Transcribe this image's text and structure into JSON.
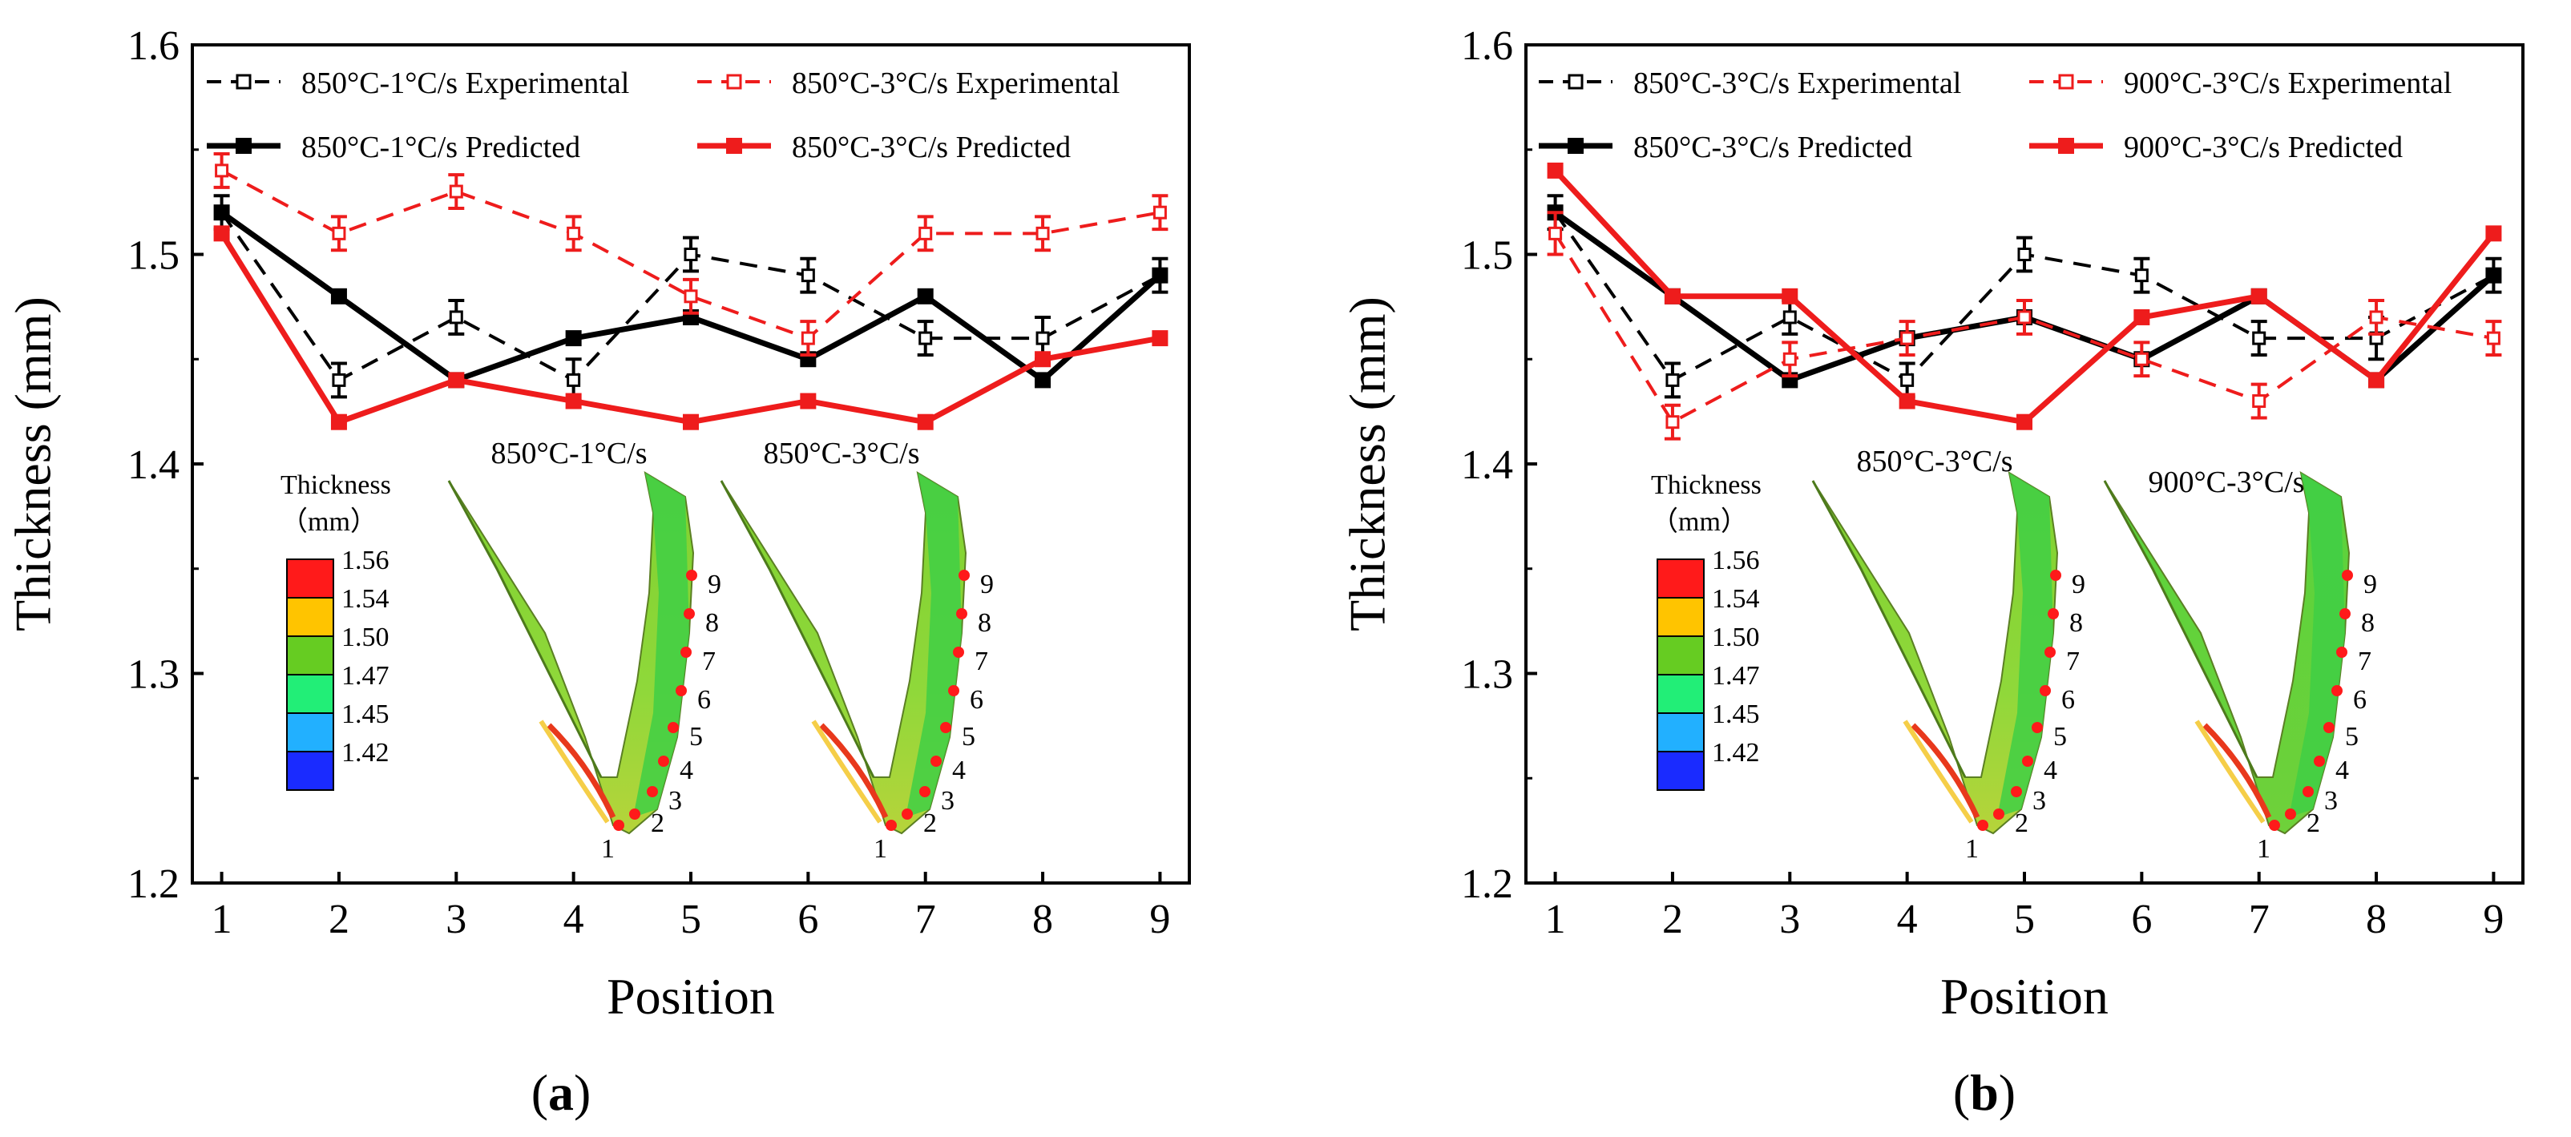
{
  "chart_data": [
    {
      "panel_label": "(a)",
      "panel_letter": "a",
      "type": "line",
      "xlabel": "Position",
      "ylabel": "Thickness (mm)",
      "ylim": [
        1.2,
        1.6
      ],
      "xlim": [
        0.75,
        9.25
      ],
      "x_ticks": [
        "1",
        "2",
        "3",
        "4",
        "5",
        "6",
        "7",
        "8",
        "9"
      ],
      "y_ticks": [
        "1.2",
        "1.3",
        "1.4",
        "1.5",
        "1.6"
      ],
      "x": [
        1,
        2,
        3,
        4,
        5,
        6,
        7,
        8,
        9
      ],
      "series": [
        {
          "name": "850°C-1°C/s Experimental",
          "color": "#000000",
          "style": "dashed",
          "marker": "open-square",
          "values": [
            1.52,
            1.44,
            1.47,
            1.44,
            1.5,
            1.49,
            1.46,
            1.46,
            1.49
          ],
          "errors": [
            0.008,
            0.008,
            0.008,
            0.01,
            0.008,
            0.008,
            0.008,
            0.01,
            0.008
          ]
        },
        {
          "name": "850°C-1°C/s Predicted",
          "color": "#000000",
          "style": "solid",
          "marker": "filled-square",
          "values": [
            1.52,
            1.48,
            1.44,
            1.46,
            1.47,
            1.45,
            1.48,
            1.44,
            1.49
          ]
        },
        {
          "name": "850°C-3°C/s Experimental",
          "color": "#ee1c1c",
          "style": "dashed",
          "marker": "open-square",
          "values": [
            1.54,
            1.51,
            1.53,
            1.51,
            1.48,
            1.46,
            1.51,
            1.51,
            1.52
          ],
          "errors": [
            0.008,
            0.008,
            0.008,
            0.008,
            0.008,
            0.008,
            0.008,
            0.008,
            0.008
          ]
        },
        {
          "name": "850°C-3°C/s Predicted",
          "color": "#ee1c1c",
          "style": "solid",
          "marker": "filled-square",
          "values": [
            1.51,
            1.42,
            1.44,
            1.43,
            1.42,
            1.43,
            1.42,
            1.45,
            1.46
          ]
        }
      ],
      "insets": [
        {
          "title": "850°C-1°C/s",
          "points": [
            "1",
            "2",
            "3",
            "4",
            "5",
            "6",
            "7",
            "8",
            "9"
          ]
        },
        {
          "title": "850°C-3°C/s",
          "points": [
            "1",
            "2",
            "3",
            "4",
            "5",
            "6",
            "7",
            "8",
            "9"
          ]
        }
      ],
      "colorbar": {
        "title_line1": "Thickness",
        "title_line2": "（mm）",
        "labels": [
          "1.56",
          "1.54",
          "1.50",
          "1.47",
          "1.45",
          "1.42"
        ],
        "colors": [
          "#ff1a1a",
          "#ffc400",
          "#66cc22",
          "#22ee77",
          "#22b0ff",
          "#1a2bff"
        ]
      }
    },
    {
      "panel_label": "(b)",
      "panel_letter": "b",
      "type": "line",
      "xlabel": "Position",
      "ylabel": "Thickness (mm)",
      "ylim": [
        1.2,
        1.6
      ],
      "xlim": [
        0.75,
        9.25
      ],
      "x_ticks": [
        "1",
        "2",
        "3",
        "4",
        "5",
        "6",
        "7",
        "8",
        "9"
      ],
      "y_ticks": [
        "1.2",
        "1.3",
        "1.4",
        "1.5",
        "1.6"
      ],
      "x": [
        1,
        2,
        3,
        4,
        5,
        6,
        7,
        8,
        9
      ],
      "series": [
        {
          "name": "850°C-3°C/s Experimental",
          "color": "#000000",
          "style": "dashed",
          "marker": "open-square",
          "values": [
            1.52,
            1.44,
            1.47,
            1.44,
            1.5,
            1.49,
            1.46,
            1.46,
            1.49
          ],
          "errors": [
            0.008,
            0.008,
            0.008,
            0.008,
            0.008,
            0.008,
            0.008,
            0.01,
            0.008
          ]
        },
        {
          "name": "850°C-3°C/s Predicted",
          "color": "#000000",
          "style": "solid",
          "marker": "filled-square",
          "values": [
            1.52,
            1.48,
            1.44,
            1.46,
            1.47,
            1.45,
            1.48,
            1.44,
            1.49
          ]
        },
        {
          "name": "900°C-3°C/s Experimental",
          "color": "#ee1c1c",
          "style": "dashed",
          "marker": "open-square",
          "values": [
            1.51,
            1.42,
            1.45,
            1.46,
            1.47,
            1.45,
            1.43,
            1.47,
            1.46
          ],
          "errors": [
            0.01,
            0.008,
            0.008,
            0.008,
            0.008,
            0.008,
            0.008,
            0.008,
            0.008
          ]
        },
        {
          "name": "900°C-3°C/s Predicted",
          "color": "#ee1c1c",
          "style": "solid",
          "marker": "filled-square",
          "values": [
            1.54,
            1.48,
            1.48,
            1.43,
            1.42,
            1.47,
            1.48,
            1.44,
            1.51
          ]
        }
      ],
      "insets": [
        {
          "title": "850°C-3°C/s",
          "points": [
            "1",
            "2",
            "3",
            "4",
            "5",
            "6",
            "7",
            "8",
            "9"
          ]
        },
        {
          "title": "900°C-3°C/s",
          "points": [
            "1",
            "2",
            "3",
            "4",
            "5",
            "6",
            "7",
            "8",
            "9"
          ]
        }
      ],
      "colorbar": {
        "title_line1": "Thickness",
        "title_line2": "（mm）",
        "labels": [
          "1.56",
          "1.54",
          "1.50",
          "1.47",
          "1.45",
          "1.42"
        ],
        "colors": [
          "#ff1a1a",
          "#ffc400",
          "#66cc22",
          "#22ee77",
          "#22b0ff",
          "#1a2bff"
        ]
      }
    }
  ]
}
